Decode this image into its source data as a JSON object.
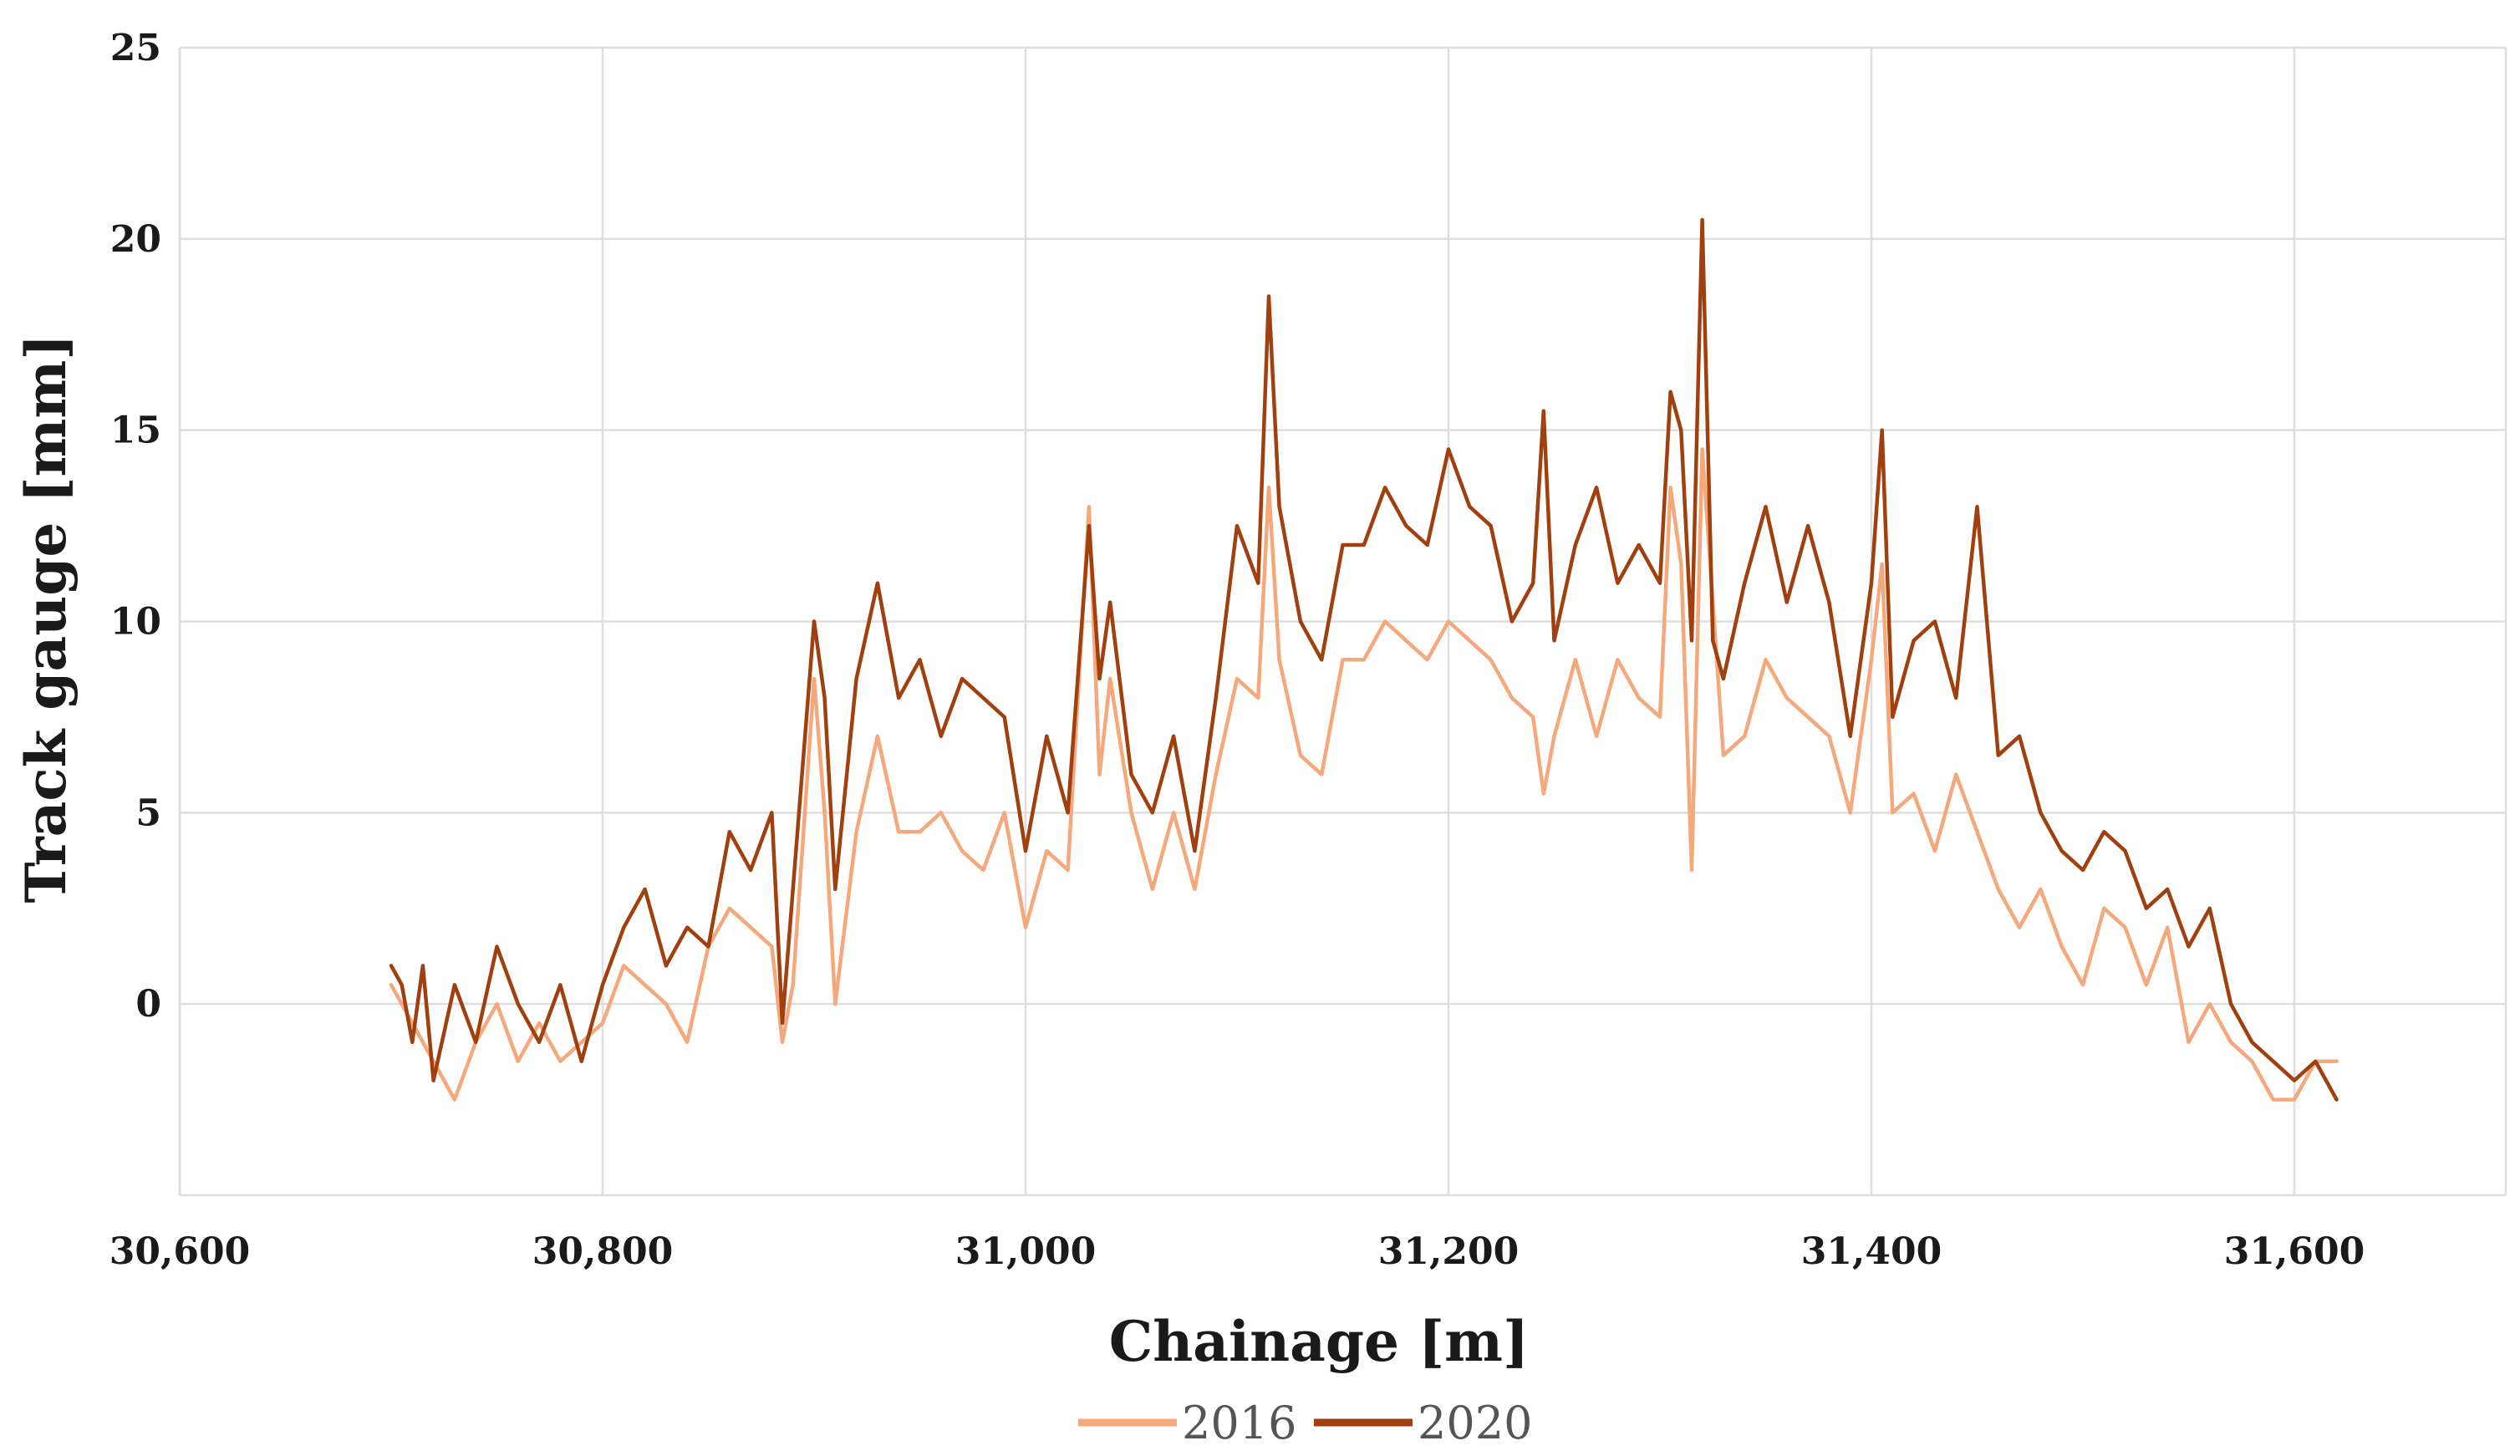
{
  "chart_data": {
    "type": "line",
    "title": "",
    "xlabel": "Chainage [m]",
    "ylabel": "Track gauge [mm]",
    "xlim": [
      30600,
      31700
    ],
    "ylim": [
      -5,
      25
    ],
    "x_ticks": [
      30600,
      30800,
      31000,
      31200,
      31400,
      31600
    ],
    "x_tick_labels": [
      "30,600",
      "30,800",
      "31,000",
      "31,200",
      "31,400",
      "31,600"
    ],
    "y_ticks": [
      0,
      5,
      10,
      15,
      20,
      25
    ],
    "y_tick_labels": [
      "0",
      "5",
      "10",
      "15",
      "20",
      "25"
    ],
    "grid": true,
    "legend_position": "bottom",
    "series": [
      {
        "name": "2016",
        "color": "#f4a87c",
        "x": [
          30700,
          30710,
          30720,
          30730,
          30740,
          30750,
          30760,
          30770,
          30780,
          30790,
          30800,
          30810,
          30820,
          30830,
          30840,
          30850,
          30860,
          30870,
          30880,
          30885,
          30890,
          30900,
          30905,
          30910,
          30920,
          30930,
          30940,
          30950,
          30960,
          30970,
          30980,
          30990,
          31000,
          31010,
          31020,
          31030,
          31035,
          31040,
          31050,
          31060,
          31070,
          31080,
          31090,
          31100,
          31110,
          31115,
          31120,
          31130,
          31140,
          31150,
          31160,
          31170,
          31180,
          31190,
          31200,
          31210,
          31220,
          31230,
          31240,
          31245,
          31250,
          31260,
          31270,
          31280,
          31290,
          31300,
          31305,
          31310,
          31315,
          31320,
          31330,
          31340,
          31350,
          31360,
          31370,
          31380,
          31390,
          31400,
          31405,
          31410,
          31420,
          31430,
          31440,
          31450,
          31460,
          31470,
          31480,
          31490,
          31500,
          31510,
          31520,
          31530,
          31540,
          31550,
          31560,
          31570,
          31580,
          31590,
          31600,
          31610,
          31620
        ],
        "y": [
          0.5,
          -0.5,
          -1.5,
          -2.5,
          -1.0,
          0.0,
          -1.5,
          -0.5,
          -1.5,
          -1.0,
          -0.5,
          1.0,
          0.5,
          0.0,
          -1.0,
          1.5,
          2.5,
          2.0,
          1.5,
          -1.0,
          0.5,
          8.5,
          5.0,
          0.0,
          4.5,
          7.0,
          4.5,
          4.5,
          5.0,
          4.0,
          3.5,
          5.0,
          2.0,
          4.0,
          3.5,
          13.0,
          6.0,
          8.5,
          5.0,
          3.0,
          5.0,
          3.0,
          6.0,
          8.5,
          8.0,
          13.5,
          9.0,
          6.5,
          6.0,
          9.0,
          9.0,
          10.0,
          9.5,
          9.0,
          10.0,
          9.5,
          9.0,
          8.0,
          7.5,
          5.5,
          7.0,
          9.0,
          7.0,
          9.0,
          8.0,
          7.5,
          13.5,
          11.5,
          3.5,
          14.5,
          6.5,
          7.0,
          9.0,
          8.0,
          7.5,
          7.0,
          5.0,
          9.0,
          11.5,
          5.0,
          5.5,
          4.0,
          6.0,
          4.5,
          3.0,
          2.0,
          3.0,
          1.5,
          0.5,
          2.5,
          2.0,
          0.5,
          2.0,
          -1.0,
          0.0,
          -1.0,
          -1.5,
          -2.5,
          -2.5,
          -1.5,
          -1.5
        ]
      },
      {
        "name": "2020",
        "color": "#a0400f",
        "x": [
          30700,
          30705,
          30710,
          30715,
          30720,
          30730,
          30740,
          30750,
          30760,
          30770,
          30780,
          30790,
          30800,
          30810,
          30820,
          30830,
          30840,
          30850,
          30860,
          30870,
          30880,
          30885,
          30890,
          30900,
          30905,
          30910,
          30920,
          30930,
          30940,
          30950,
          30960,
          30970,
          30980,
          30990,
          31000,
          31010,
          31020,
          31030,
          31035,
          31040,
          31050,
          31060,
          31070,
          31080,
          31090,
          31100,
          31110,
          31115,
          31120,
          31130,
          31140,
          31150,
          31160,
          31170,
          31180,
          31190,
          31200,
          31210,
          31220,
          31230,
          31240,
          31245,
          31250,
          31260,
          31270,
          31280,
          31290,
          31300,
          31305,
          31310,
          31315,
          31320,
          31325,
          31330,
          31340,
          31350,
          31360,
          31370,
          31380,
          31390,
          31400,
          31405,
          31410,
          31420,
          31430,
          31440,
          31450,
          31460,
          31470,
          31480,
          31490,
          31500,
          31510,
          31520,
          31530,
          31540,
          31550,
          31560,
          31570,
          31580,
          31590,
          31600,
          31610,
          31620
        ],
        "y": [
          1.0,
          0.5,
          -1.0,
          1.0,
          -2.0,
          0.5,
          -1.0,
          1.5,
          0.0,
          -1.0,
          0.5,
          -1.5,
          0.5,
          2.0,
          3.0,
          1.0,
          2.0,
          1.5,
          4.5,
          3.5,
          5.0,
          -0.5,
          3.0,
          10.0,
          8.0,
          3.0,
          8.5,
          11.0,
          8.0,
          9.0,
          7.0,
          8.5,
          8.0,
          7.5,
          4.0,
          7.0,
          5.0,
          12.5,
          8.5,
          10.5,
          6.0,
          5.0,
          7.0,
          4.0,
          8.0,
          12.5,
          11.0,
          18.5,
          13.0,
          10.0,
          9.0,
          12.0,
          12.0,
          13.5,
          12.5,
          12.0,
          14.5,
          13.0,
          12.5,
          10.0,
          11.0,
          15.5,
          9.5,
          12.0,
          13.5,
          11.0,
          12.0,
          11.0,
          16.0,
          15.0,
          9.5,
          20.5,
          9.5,
          8.5,
          11.0,
          13.0,
          10.5,
          12.5,
          10.5,
          7.0,
          11.0,
          15.0,
          7.5,
          9.5,
          10.0,
          8.0,
          13.0,
          6.5,
          7.0,
          5.0,
          4.0,
          3.5,
          4.5,
          4.0,
          2.5,
          3.0,
          1.5,
          2.5,
          0.0,
          -1.0,
          -1.5,
          -2.0,
          -1.5,
          -2.5
        ]
      }
    ]
  }
}
